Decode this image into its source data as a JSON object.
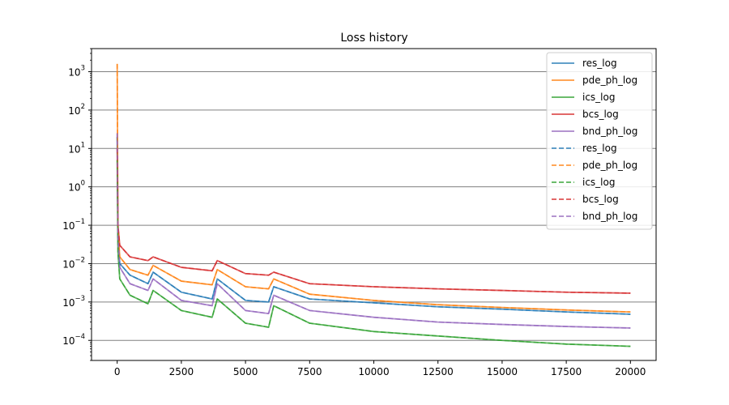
{
  "chart_data": {
    "type": "line",
    "title": "Loss history",
    "xlabel": "",
    "ylabel": "",
    "xlim": [
      -1000,
      21000
    ],
    "ylim": [
      3e-05,
      4000
    ],
    "yscale": "log",
    "grid": "horizontal major",
    "legend_position": "top-right",
    "x_ticks": [
      0,
      2500,
      5000,
      7500,
      10000,
      12500,
      15000,
      17500,
      20000
    ],
    "x_tick_labels": [
      "0",
      "2500",
      "5000",
      "7500",
      "10000",
      "12500",
      "15000",
      "17500",
      "20000"
    ],
    "y_ticks": [
      0.0001,
      0.001,
      0.01,
      0.1,
      1,
      10,
      100,
      1000
    ],
    "y_tick_labels": [
      {
        "base": "10",
        "exp": "−4"
      },
      {
        "base": "10",
        "exp": "−3"
      },
      {
        "base": "10",
        "exp": "−2"
      },
      {
        "base": "10",
        "exp": "−1"
      },
      {
        "base": "10",
        "exp": "0"
      },
      {
        "base": "10",
        "exp": "1"
      },
      {
        "base": "10",
        "exp": "2"
      },
      {
        "base": "10",
        "exp": "3"
      }
    ],
    "spikes_x": [
      0,
      1250,
      2000,
      2500,
      3000,
      3800,
      6000
    ],
    "series": [
      {
        "name": "res_log",
        "style": "solid",
        "color": "#1f77b4",
        "x": [
          0,
          30,
          100,
          500,
          1200,
          1400,
          2500,
          3700,
          3900,
          5000,
          5900,
          6100,
          7500,
          10000,
          12500,
          15000,
          17500,
          20000
        ],
        "y": [
          20,
          0.05,
          0.01,
          0.005,
          0.003,
          0.006,
          0.0018,
          0.0012,
          0.004,
          0.0011,
          0.001,
          0.0025,
          0.0012,
          0.00095,
          0.00075,
          0.00065,
          0.00055,
          0.00048
        ]
      },
      {
        "name": "pde_ph_log",
        "style": "solid",
        "color": "#ff7f0e",
        "x": [
          0,
          30,
          100,
          500,
          1200,
          1400,
          2500,
          3700,
          3900,
          5000,
          5900,
          6100,
          7500,
          10000,
          12500,
          15000,
          17500,
          20000
        ],
        "y": [
          1600,
          0.08,
          0.015,
          0.007,
          0.005,
          0.009,
          0.0035,
          0.0028,
          0.007,
          0.0025,
          0.0022,
          0.004,
          0.0016,
          0.0011,
          0.00085,
          0.00072,
          0.00062,
          0.00055
        ]
      },
      {
        "name": "ics_log",
        "style": "solid",
        "color": "#2ca02c",
        "x": [
          0,
          30,
          100,
          500,
          1200,
          1400,
          2500,
          3700,
          3900,
          5000,
          5900,
          6100,
          7500,
          10000,
          12500,
          15000,
          17500,
          20000
        ],
        "y": [
          5,
          0.02,
          0.004,
          0.0015,
          0.0009,
          0.002,
          0.0006,
          0.0004,
          0.0012,
          0.00028,
          0.00022,
          0.0008,
          0.00028,
          0.00017,
          0.00013,
          0.0001,
          8e-05,
          7e-05
        ]
      },
      {
        "name": "bcs_log",
        "style": "solid",
        "color": "#d62728",
        "x": [
          0,
          30,
          100,
          500,
          1200,
          1400,
          2500,
          3700,
          3900,
          5000,
          5900,
          6100,
          7500,
          10000,
          12500,
          15000,
          17500,
          20000
        ],
        "y": [
          10,
          0.1,
          0.03,
          0.015,
          0.012,
          0.015,
          0.008,
          0.0065,
          0.012,
          0.0055,
          0.005,
          0.006,
          0.003,
          0.0025,
          0.0022,
          0.002,
          0.0018,
          0.0017
        ]
      },
      {
        "name": "bnd_ph_log",
        "style": "solid",
        "color": "#9467bd",
        "x": [
          0,
          30,
          100,
          500,
          1200,
          1400,
          2500,
          3700,
          3900,
          5000,
          5900,
          6100,
          7500,
          10000,
          12500,
          15000,
          17500,
          20000
        ],
        "y": [
          25,
          0.05,
          0.008,
          0.003,
          0.002,
          0.004,
          0.0011,
          0.0008,
          0.003,
          0.0006,
          0.0005,
          0.0015,
          0.0006,
          0.0004,
          0.0003,
          0.00026,
          0.00023,
          0.00021
        ]
      },
      {
        "name": "res_log",
        "style": "dashed",
        "color": "#1f77b4",
        "x": [
          0,
          30,
          100,
          500,
          1200,
          1400,
          2500,
          3700,
          3900,
          5000,
          5900,
          6100,
          7500,
          10000,
          12500,
          15000,
          17500,
          20000
        ],
        "y": [
          20,
          0.05,
          0.01,
          0.005,
          0.003,
          0.006,
          0.0018,
          0.0012,
          0.004,
          0.0011,
          0.001,
          0.0025,
          0.0012,
          0.00095,
          0.00075,
          0.00065,
          0.00055,
          0.00048
        ]
      },
      {
        "name": "pde_ph_log",
        "style": "dashed",
        "color": "#ff7f0e",
        "x": [
          0,
          30,
          100,
          500,
          1200,
          1400,
          2500,
          3700,
          3900,
          5000,
          5900,
          6100,
          7500,
          10000,
          12500,
          15000,
          17500,
          20000
        ],
        "y": [
          1600,
          0.08,
          0.015,
          0.007,
          0.005,
          0.009,
          0.0035,
          0.0028,
          0.007,
          0.0025,
          0.0022,
          0.004,
          0.0016,
          0.0011,
          0.00085,
          0.00072,
          0.00062,
          0.00055
        ]
      },
      {
        "name": "ics_log",
        "style": "dashed",
        "color": "#2ca02c",
        "x": [
          0,
          30,
          100,
          500,
          1200,
          1400,
          2500,
          3700,
          3900,
          5000,
          5900,
          6100,
          7500,
          10000,
          12500,
          15000,
          17500,
          20000
        ],
        "y": [
          5,
          0.02,
          0.004,
          0.0015,
          0.0009,
          0.002,
          0.0006,
          0.0004,
          0.0012,
          0.00028,
          0.00022,
          0.0008,
          0.00028,
          0.00017,
          0.00013,
          0.0001,
          8e-05,
          7e-05
        ]
      },
      {
        "name": "bcs_log",
        "style": "dashed",
        "color": "#d62728",
        "x": [
          0,
          30,
          100,
          500,
          1200,
          1400,
          2500,
          3700,
          3900,
          5000,
          5900,
          6100,
          7500,
          10000,
          12500,
          15000,
          17500,
          20000
        ],
        "y": [
          10,
          0.1,
          0.03,
          0.015,
          0.012,
          0.015,
          0.008,
          0.0065,
          0.012,
          0.0055,
          0.005,
          0.006,
          0.003,
          0.0025,
          0.0022,
          0.002,
          0.0018,
          0.0017
        ]
      },
      {
        "name": "bnd_ph_log",
        "style": "dashed",
        "color": "#9467bd",
        "x": [
          0,
          30,
          100,
          500,
          1200,
          1400,
          2500,
          3700,
          3900,
          5000,
          5900,
          6100,
          7500,
          10000,
          12500,
          15000,
          17500,
          20000
        ],
        "y": [
          25,
          0.05,
          0.008,
          0.003,
          0.002,
          0.004,
          0.0011,
          0.0008,
          0.003,
          0.0006,
          0.0005,
          0.0015,
          0.0006,
          0.0004,
          0.0003,
          0.00026,
          0.00023,
          0.00021
        ]
      }
    ]
  }
}
